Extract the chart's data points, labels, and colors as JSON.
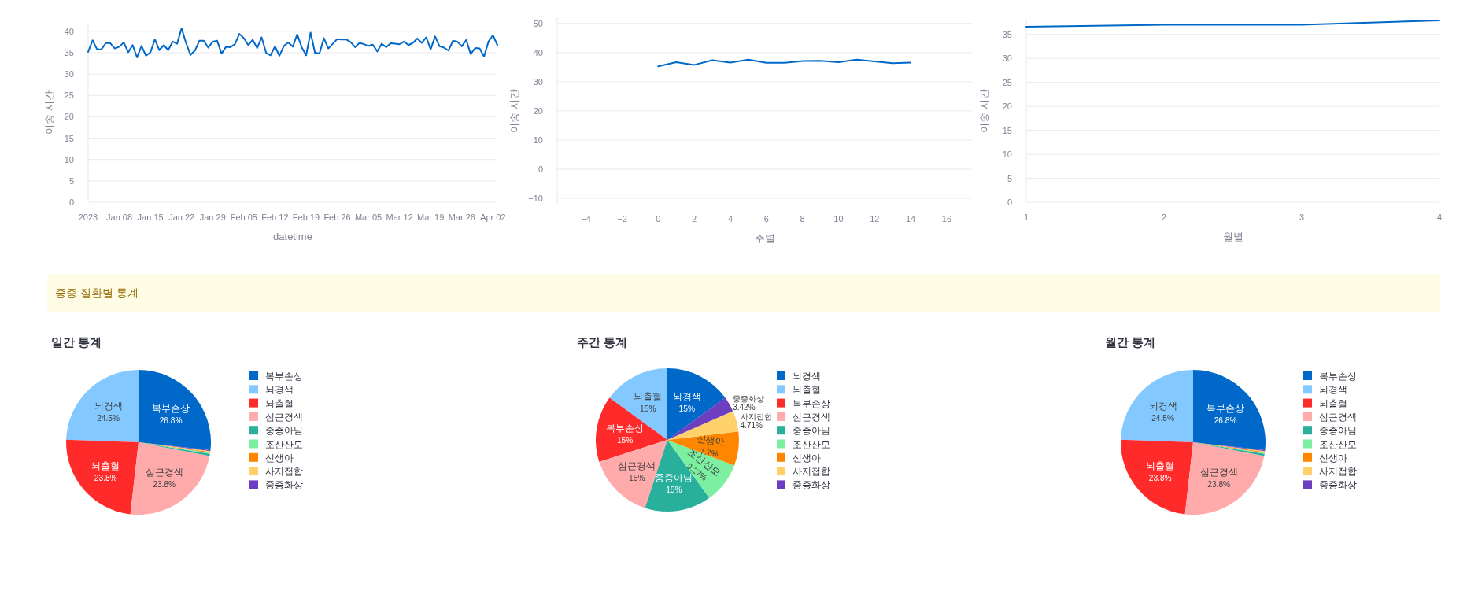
{
  "chart_data": [
    {
      "type": "line",
      "xlabel": "datetime",
      "ylabel": "이송 시간",
      "color": "#0068c9",
      "grid": "y",
      "x": [
        "2023-01-01",
        "2023-01-02",
        "2023-01-03",
        "2023-01-04",
        "2023-01-05",
        "2023-01-06",
        "2023-01-07",
        "2023-01-08",
        "2023-01-09",
        "2023-01-10",
        "2023-01-11",
        "2023-01-12",
        "2023-01-13",
        "2023-01-14",
        "2023-01-15",
        "2023-01-16",
        "2023-01-17",
        "2023-01-18",
        "2023-01-19",
        "2023-01-20",
        "2023-01-21",
        "2023-01-22",
        "2023-01-23",
        "2023-01-24",
        "2023-01-25",
        "2023-01-26",
        "2023-01-27",
        "2023-01-28",
        "2023-01-29",
        "2023-01-30",
        "2023-01-31",
        "2023-02-01",
        "2023-02-02",
        "2023-02-03",
        "2023-02-04",
        "2023-02-05",
        "2023-02-06",
        "2023-02-07",
        "2023-02-08",
        "2023-02-09",
        "2023-02-10",
        "2023-02-11",
        "2023-02-12",
        "2023-02-13",
        "2023-02-14",
        "2023-02-15",
        "2023-02-16",
        "2023-02-17",
        "2023-02-18",
        "2023-02-19",
        "2023-02-20",
        "2023-02-21",
        "2023-02-22",
        "2023-02-23",
        "2023-02-24",
        "2023-02-25",
        "2023-02-26",
        "2023-02-27",
        "2023-02-28",
        "2023-03-01",
        "2023-03-02",
        "2023-03-03",
        "2023-03-04",
        "2023-03-05",
        "2023-03-06",
        "2023-03-07",
        "2023-03-08",
        "2023-03-09",
        "2023-03-10",
        "2023-03-11",
        "2023-03-12",
        "2023-03-13",
        "2023-03-14",
        "2023-03-15",
        "2023-03-16",
        "2023-03-17",
        "2023-03-18",
        "2023-03-19",
        "2023-03-20",
        "2023-03-21",
        "2023-03-22",
        "2023-03-23",
        "2023-03-24",
        "2023-03-25",
        "2023-03-26",
        "2023-03-27",
        "2023-03-28",
        "2023-03-29",
        "2023-03-30",
        "2023-03-31",
        "2023-04-01",
        "2023-04-02",
        "2023-04-03"
      ],
      "values": [
        35.2,
        37.9,
        35.8,
        35.8,
        37.3,
        37.2,
        36.0,
        36.4,
        37.4,
        35.1,
        36.8,
        33.9,
        36.6,
        34.3,
        35.1,
        38.1,
        35.6,
        36.8,
        35.6,
        37.6,
        37.1,
        40.7,
        37.3,
        34.5,
        35.5,
        37.8,
        37.8,
        36.2,
        37.6,
        37.8,
        34.8,
        36.4,
        36.3,
        37.0,
        39.4,
        38.4,
        36.8,
        38.0,
        36.1,
        38.6,
        35.0,
        34.4,
        36.5,
        34.3,
        36.6,
        37.4,
        36.4,
        39.3,
        36.3,
        34.4,
        39.7,
        35.0,
        34.8,
        38.4,
        36.0,
        37.1,
        38.2,
        38.1,
        38.1,
        37.5,
        36.3,
        37.3,
        37.0,
        36.6,
        36.9,
        35.3,
        37.1,
        36.3,
        37.2,
        37.1,
        37.0,
        37.6,
        36.8,
        37.3,
        38.3,
        37.3,
        38.6,
        35.8,
        38.8,
        36.5,
        36.2,
        35.5,
        37.8,
        37.6,
        36.5,
        38.0,
        34.7,
        36.1,
        36.0,
        34.1,
        37.6,
        39.1,
        36.8
      ],
      "xlim": [
        "2023-01-01",
        "2023-04-03"
      ],
      "xticks": [
        {
          "value": "2023-01-01",
          "label": "2023"
        },
        {
          "value": "2023-01-08",
          "label": "Jan 08"
        },
        {
          "value": "2023-01-15",
          "label": "Jan 15"
        },
        {
          "value": "2023-01-22",
          "label": "Jan 22"
        },
        {
          "value": "2023-01-29",
          "label": "Jan 29"
        },
        {
          "value": "2023-02-05",
          "label": "Feb 05"
        },
        {
          "value": "2023-02-12",
          "label": "Feb 12"
        },
        {
          "value": "2023-02-19",
          "label": "Feb 19"
        },
        {
          "value": "2023-02-26",
          "label": "Feb 26"
        },
        {
          "value": "2023-03-05",
          "label": "Mar 05"
        },
        {
          "value": "2023-03-12",
          "label": "Mar 12"
        },
        {
          "value": "2023-03-19",
          "label": "Mar 19"
        },
        {
          "value": "2023-03-26",
          "label": "Mar 26"
        },
        {
          "value": "2023-04-02",
          "label": "Apr 02"
        }
      ],
      "ylim": [
        0,
        42
      ],
      "yticks": [
        0,
        5,
        10,
        15,
        20,
        25,
        30,
        35,
        40
      ]
    },
    {
      "type": "line",
      "xlabel": "주별",
      "ylabel": "이송 시간",
      "color": "#0068c9",
      "grid": "y",
      "x": [
        0,
        1,
        2,
        3,
        4,
        5,
        6,
        7,
        8,
        9,
        10,
        11,
        12,
        13,
        14
      ],
      "values": [
        35.3,
        36.7,
        35.8,
        37.4,
        36.6,
        37.6,
        36.5,
        36.5,
        37.1,
        37.2,
        36.7,
        37.6,
        37.0,
        36.4,
        36.6
      ],
      "xlim": [
        -5.6,
        17.4
      ],
      "xticks": [
        {
          "value": -4,
          "label": "−4"
        },
        {
          "value": -2,
          "label": "−2"
        },
        0,
        2,
        4,
        6,
        8,
        10,
        12,
        14,
        16
      ],
      "ylim": [
        -12,
        52
      ],
      "yticks": [
        {
          "value": -10,
          "label": "−10"
        },
        0,
        10,
        20,
        30,
        40,
        50
      ]
    },
    {
      "type": "line",
      "xlabel": "월별",
      "ylabel": "이송 시간",
      "color": "#0068c9",
      "grid": "y",
      "x": [
        1,
        2,
        3,
        4
      ],
      "values": [
        36.6,
        37.0,
        37.0,
        37.9
      ],
      "xlim": [
        1,
        4
      ],
      "xticks": [
        1,
        2,
        3,
        4
      ],
      "ylim": [
        0,
        38
      ],
      "yticks": [
        0,
        5,
        10,
        15,
        20,
        25,
        30,
        35
      ]
    },
    {
      "type": "other",
      "title": "중증 질환별 통계"
    },
    {
      "type": "pie",
      "title": "일간 통계",
      "legend": "right",
      "categories": [
        "복부손상",
        "뇌경색",
        "뇌출혈",
        "심근경색",
        "중증아님",
        "조산산모",
        "신생아",
        "사지접합",
        "중증화상"
      ],
      "values": [
        26.8,
        24.5,
        23.8,
        23.8,
        0.5,
        0.2,
        0.2,
        0.2,
        0.2
      ],
      "value_labels": [
        "26.8%",
        "24.5%",
        "23.8%",
        "23.8%",
        null,
        null,
        null,
        null,
        null
      ],
      "colors": [
        "#0068c9",
        "#83c9ff",
        "#ff2b2b",
        "#ffabab",
        "#29b09d",
        "#7defa1",
        "#ff8700",
        "#ffd16a",
        "#6d3fc0"
      ]
    },
    {
      "type": "pie",
      "title": "주간 통계",
      "legend": "right",
      "categories": [
        "뇌경색",
        "뇌출혈",
        "복부손상",
        "심근경색",
        "중증아님",
        "조산산모",
        "신생아",
        "사지접합",
        "중증화상"
      ],
      "values": [
        15,
        15,
        15,
        15,
        15,
        9.27,
        7.7,
        4.71,
        3.42
      ],
      "value_labels": [
        "15%",
        "15%",
        "15%",
        "15%",
        "15%",
        "9.27%",
        "7.7%",
        "4.71%",
        "3.42%"
      ],
      "colors": [
        "#0068c9",
        "#83c9ff",
        "#ff2b2b",
        "#ffabab",
        "#29b09d",
        "#7defa1",
        "#ff8700",
        "#ffd16a",
        "#6d3fc0"
      ]
    },
    {
      "type": "pie",
      "title": "월간 통계",
      "legend": "right",
      "categories": [
        "복부손상",
        "뇌경색",
        "뇌출혈",
        "심근경색",
        "중증아님",
        "조산산모",
        "신생아",
        "사지접합",
        "중증화상"
      ],
      "values": [
        26.8,
        24.5,
        23.8,
        23.8,
        0.5,
        0.2,
        0.2,
        0.2,
        0.2
      ],
      "value_labels": [
        "26.8%",
        "24.5%",
        "23.8%",
        "23.8%",
        null,
        null,
        null,
        null,
        null
      ],
      "colors": [
        "#0068c9",
        "#83c9ff",
        "#ff2b2b",
        "#ffabab",
        "#29b09d",
        "#7defa1",
        "#ff8700",
        "#ffd16a",
        "#6d3fc0"
      ]
    }
  ]
}
